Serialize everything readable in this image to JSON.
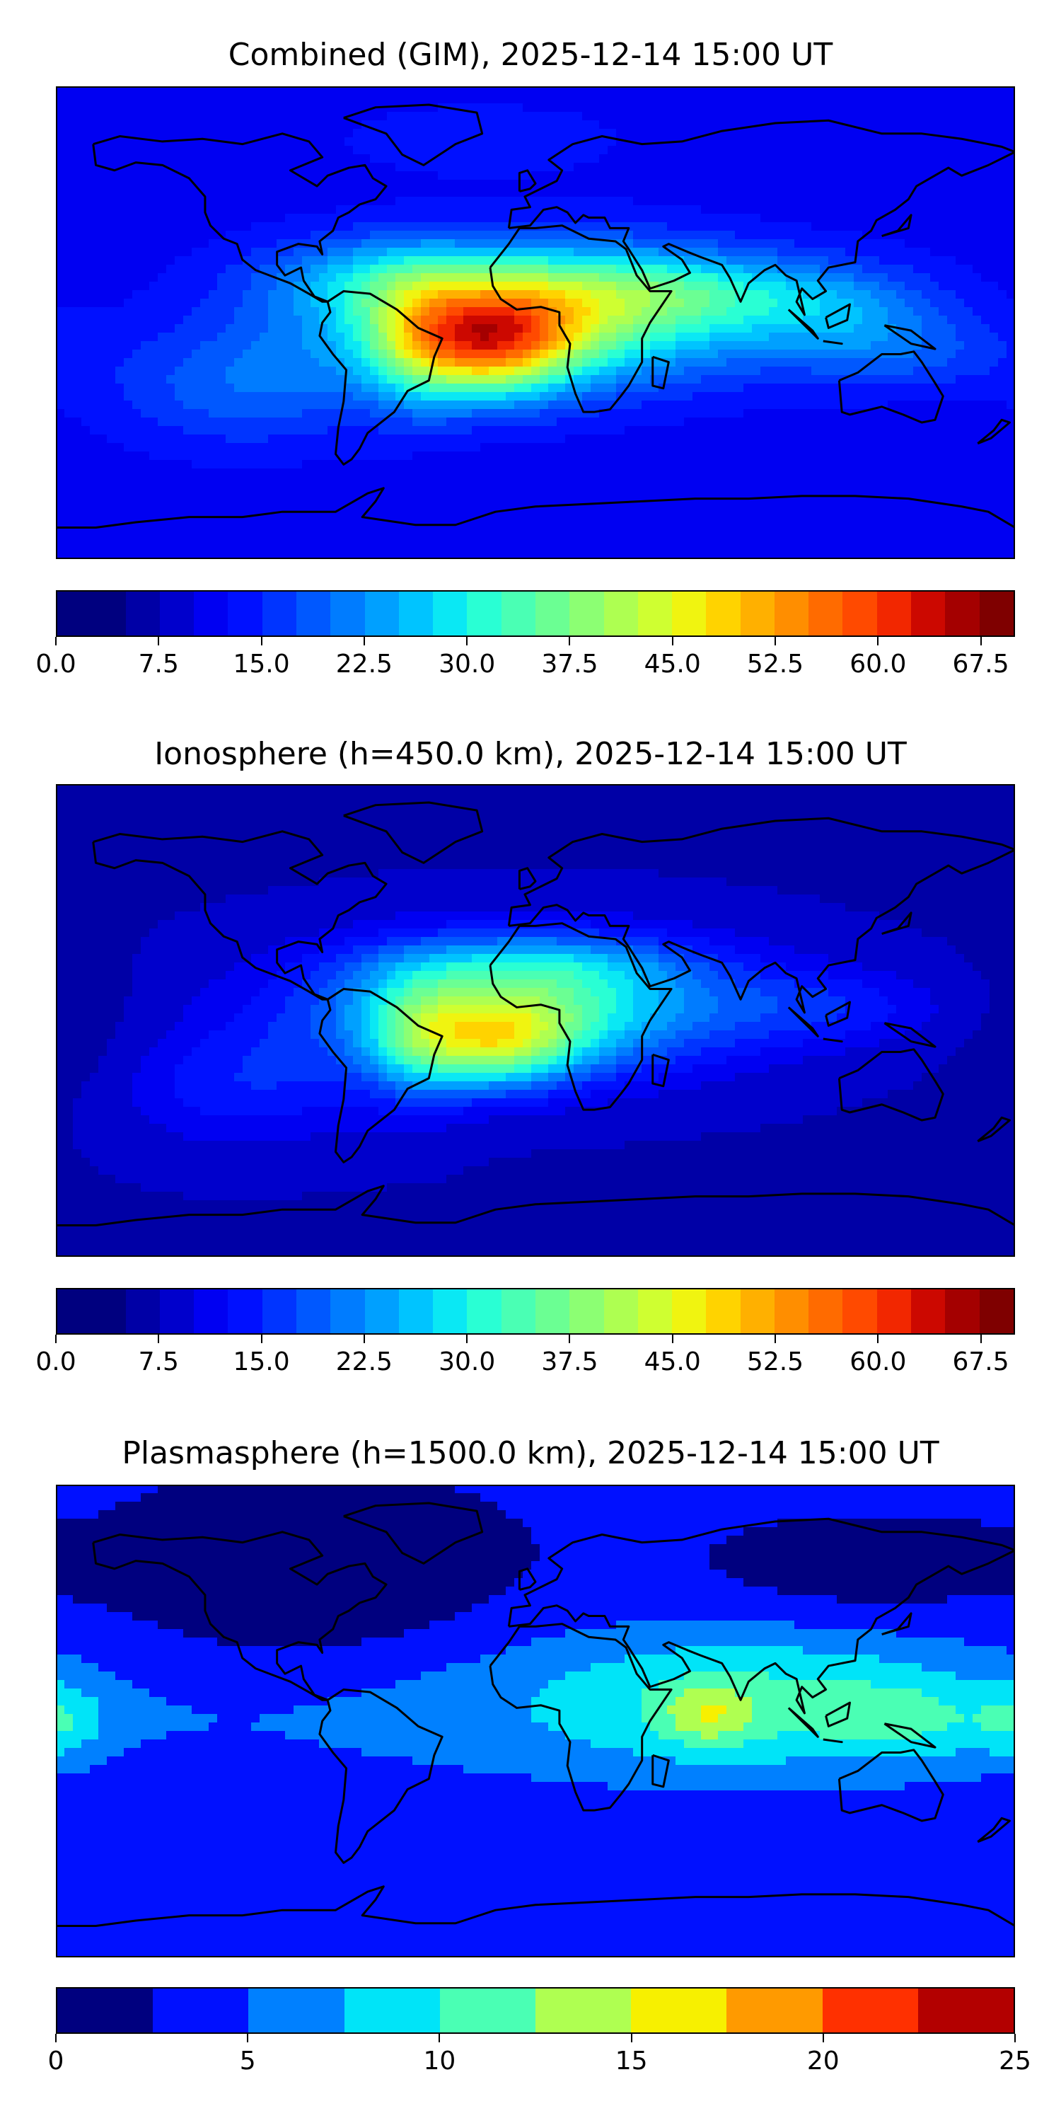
{
  "colormap": [
    "#00007f",
    "#0000a6",
    "#0000cc",
    "#0000f2",
    "#0010ff",
    "#0034ff",
    "#0058ff",
    "#007cff",
    "#00a0ff",
    "#00c4ff",
    "#0ae8f4",
    "#29ffd4",
    "#4affb4",
    "#6bff93",
    "#8cff73",
    "#aeff51",
    "#cfff31",
    "#f0f410",
    "#ffd300",
    "#ffb000",
    "#ff8e00",
    "#ff6b00",
    "#ff4a00",
    "#f22700",
    "#cc0800",
    "#a40000",
    "#7f0000"
  ],
  "colormap_coarse": [
    "#00007f",
    "#0010ff",
    "#0080ff",
    "#00e4f8",
    "#4affb4",
    "#afff51",
    "#f7f000",
    "#ff9a00",
    "#ff3000",
    "#b30000"
  ],
  "chart_data": [
    {
      "type": "heatmap",
      "title": "Combined (GIM), 2025-12-14 15:00 UT",
      "colorbar": {
        "ticks": [
          "0.0",
          "7.5",
          "15.0",
          "22.5",
          "30.0",
          "37.5",
          "45.0",
          "52.5",
          "60.0",
          "67.5"
        ],
        "vmin": 0,
        "vmax": 70,
        "levels": 28
      },
      "field": {
        "background": 9,
        "features": [
          {
            "lon": 0,
            "lat": 3,
            "sx": 58,
            "sy": 18,
            "amp": 28
          },
          {
            "lon": -17,
            "lat": -8,
            "sx": 22,
            "sy": 14,
            "amp": 30
          },
          {
            "lon": -45,
            "lat": -8,
            "sx": 14,
            "sy": 18,
            "amp": 10
          },
          {
            "lon": 50,
            "lat": 12,
            "sx": 45,
            "sy": 10,
            "amp": 10
          },
          {
            "lon": 115,
            "lat": 4,
            "sx": 28,
            "sy": 12,
            "amp": 8
          },
          {
            "lon": 140,
            "lat": -12,
            "sx": 30,
            "sy": 10,
            "amp": 6
          },
          {
            "lon": -60,
            "lat": 18,
            "sx": 30,
            "sy": 10,
            "amp": 8
          },
          {
            "lon": -110,
            "lat": -25,
            "sx": 35,
            "sy": 16,
            "amp": 8
          },
          {
            "lon": -20,
            "lat": 70,
            "sx": 40,
            "sy": 10,
            "amp": 3
          }
        ]
      }
    },
    {
      "type": "heatmap",
      "title": "Ionosphere  (h=450.0 km), 2025-12-14 15:00 UT",
      "colorbar": {
        "ticks": [
          "0.0",
          "7.5",
          "15.0",
          "22.5",
          "30.0",
          "37.5",
          "45.0",
          "52.5",
          "60.0",
          "67.5"
        ],
        "vmin": 0,
        "vmax": 70,
        "levels": 28
      },
      "field": {
        "background": 5,
        "features": [
          {
            "lon": -5,
            "lat": 5,
            "sx": 55,
            "sy": 17,
            "amp": 26
          },
          {
            "lon": -15,
            "lat": -9,
            "sx": 22,
            "sy": 12,
            "amp": 22
          },
          {
            "lon": -45,
            "lat": -8,
            "sx": 14,
            "sy": 18,
            "amp": 10
          },
          {
            "lon": 0,
            "lat": 22,
            "sx": 40,
            "sy": 8,
            "amp": 8
          },
          {
            "lon": 110,
            "lat": 5,
            "sx": 30,
            "sy": 10,
            "amp": 6
          },
          {
            "lon": -110,
            "lat": -25,
            "sx": 35,
            "sy": 16,
            "amp": 7
          },
          {
            "lon": -170,
            "lat": -10,
            "sx": 20,
            "sy": 20,
            "amp": -2
          }
        ]
      }
    },
    {
      "type": "heatmap",
      "title": "Plasmasphere (h=1500.0 km), 2025-12-14 15:00 UT",
      "colorbar": {
        "ticks": [
          "0",
          "5",
          "10",
          "15",
          "20",
          "25"
        ],
        "vmin": 0,
        "vmax": 25,
        "levels": 10
      },
      "field": {
        "background": 3,
        "features": [
          {
            "lon": 20,
            "lat": 5,
            "sx": 180,
            "sy": 22,
            "amp": 3
          },
          {
            "lon": 85,
            "lat": 8,
            "sx": 60,
            "sy": 20,
            "amp": 5
          },
          {
            "lon": 65,
            "lat": 2,
            "sx": 12,
            "sy": 8,
            "amp": 5
          },
          {
            "lon": 140,
            "lat": 0,
            "sx": 22,
            "sy": 10,
            "amp": 3
          },
          {
            "lon": -178,
            "lat": 0,
            "sx": 12,
            "sy": 10,
            "amp": 4
          },
          {
            "lon": -85,
            "lat": 50,
            "sx": 50,
            "sy": 25,
            "amp": -3
          },
          {
            "lon": 120,
            "lat": 55,
            "sx": 40,
            "sy": 14,
            "amp": -2
          }
        ]
      }
    }
  ]
}
